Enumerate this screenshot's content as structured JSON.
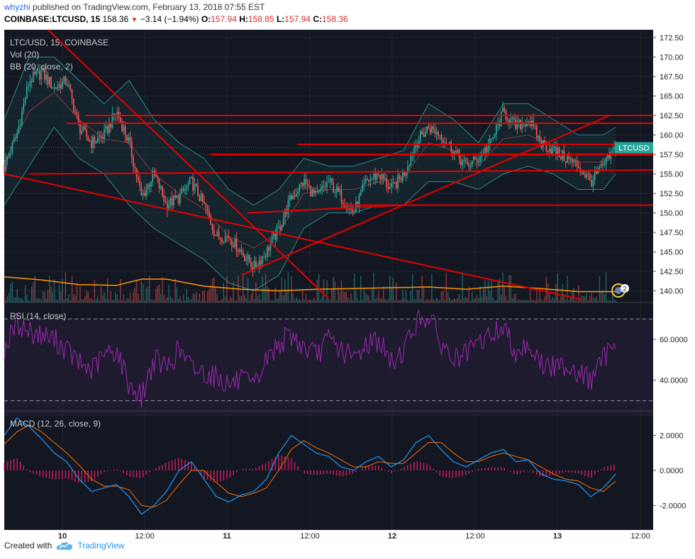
{
  "header": {
    "user": "whyzhi",
    "published_text": "published on TradingView.com, February 13, 2018 07:55 EST",
    "symbol": "COINBASE:LTCUSD, 15",
    "last": "158.36",
    "change": "−3.14 (−1.94%)",
    "o_label": "O:",
    "o_value": "157.94",
    "h_label": "H:",
    "h_value": "158.85",
    "l_label": "L:",
    "l_value": "157.94",
    "c_label": "C:",
    "c_value": "158.36"
  },
  "footer": {
    "created_with": "Created with",
    "brand": "TradingView"
  },
  "colors": {
    "bg": "#131722",
    "up": "#26a69a",
    "down": "#ef5350",
    "trend": "#e60000",
    "bb": "#2a8c8c",
    "vol_ma": "#ff9800",
    "rsi": "#9c27b0",
    "macd": "#2196f3",
    "signal": "#ff6d00",
    "hist": "#e91e63"
  },
  "chart_data": [
    {
      "type": "candlestick",
      "legend": [
        "LTC/USD, 15, COINBASE",
        "Vol (20)",
        "BB (20, close, 2)"
      ],
      "price_label": "LTCUSD",
      "last_price": 158.36,
      "x_ticks": [
        "10",
        "12:00",
        "11",
        "12:00",
        "12",
        "12:00",
        "13",
        "12:00"
      ],
      "y_ticks": [
        "172.50",
        "170.00",
        "167.50",
        "165.00",
        "162.50",
        "160.00",
        "157.50",
        "155.00",
        "152.50",
        "150.00",
        "147.50",
        "145.00",
        "142.50",
        "140.00"
      ],
      "ylim": [
        138.5,
        173.5
      ],
      "x_range_hours": [
        0,
        104
      ],
      "close_path": [
        [
          0,
          156
        ],
        [
          2,
          160
        ],
        [
          4,
          167
        ],
        [
          6,
          168
        ],
        [
          8,
          166
        ],
        [
          10,
          167
        ],
        [
          12,
          161
        ],
        [
          14,
          159
        ],
        [
          16,
          160
        ],
        [
          18,
          163
        ],
        [
          20,
          159
        ],
        [
          22,
          152
        ],
        [
          24,
          155
        ],
        [
          26,
          151
        ],
        [
          28,
          152
        ],
        [
          30,
          154
        ],
        [
          32,
          151
        ],
        [
          34,
          147
        ],
        [
          36,
          147
        ],
        [
          38,
          145
        ],
        [
          40,
          143
        ],
        [
          42,
          145
        ],
        [
          44,
          148
        ],
        [
          46,
          152
        ],
        [
          48,
          154
        ],
        [
          50,
          152
        ],
        [
          52,
          154
        ],
        [
          54,
          152
        ],
        [
          56,
          150
        ],
        [
          58,
          154
        ],
        [
          60,
          155
        ],
        [
          62,
          153
        ],
        [
          64,
          155
        ],
        [
          66,
          159
        ],
        [
          68,
          161
        ],
        [
          70,
          160
        ],
        [
          72,
          158
        ],
        [
          74,
          156
        ],
        [
          76,
          157
        ],
        [
          78,
          159
        ],
        [
          80,
          163
        ],
        [
          82,
          161
        ],
        [
          84,
          162
        ],
        [
          86,
          159
        ],
        [
          88,
          158
        ],
        [
          90,
          157
        ],
        [
          92,
          156
        ],
        [
          94,
          154
        ],
        [
          96,
          156
        ],
        [
          98,
          158.36
        ]
      ],
      "bb_upper": [
        [
          0,
          162
        ],
        [
          4,
          170
        ],
        [
          8,
          170
        ],
        [
          12,
          167
        ],
        [
          16,
          164
        ],
        [
          20,
          167
        ],
        [
          24,
          162
        ],
        [
          28,
          159
        ],
        [
          32,
          157
        ],
        [
          36,
          153
        ],
        [
          40,
          151
        ],
        [
          44,
          153
        ],
        [
          48,
          157
        ],
        [
          52,
          156
        ],
        [
          56,
          156
        ],
        [
          60,
          157
        ],
        [
          64,
          158
        ],
        [
          68,
          164
        ],
        [
          72,
          162
        ],
        [
          76,
          159
        ],
        [
          80,
          164
        ],
        [
          84,
          164
        ],
        [
          88,
          162
        ],
        [
          92,
          160
        ],
        [
          96,
          160
        ],
        [
          98,
          161
        ]
      ],
      "bb_lower": [
        [
          0,
          151
        ],
        [
          4,
          156
        ],
        [
          8,
          161
        ],
        [
          12,
          157
        ],
        [
          16,
          155
        ],
        [
          20,
          151
        ],
        [
          24,
          148
        ],
        [
          28,
          146
        ],
        [
          32,
          144
        ],
        [
          36,
          141
        ],
        [
          40,
          140
        ],
        [
          44,
          142
        ],
        [
          48,
          148
        ],
        [
          52,
          150
        ],
        [
          56,
          150
        ],
        [
          60,
          151
        ],
        [
          64,
          151
        ],
        [
          68,
          154
        ],
        [
          72,
          154
        ],
        [
          76,
          153
        ],
        [
          80,
          155
        ],
        [
          84,
          156
        ],
        [
          88,
          155
        ],
        [
          92,
          153
        ],
        [
          96,
          153
        ],
        [
          98,
          155
        ]
      ],
      "volume_ma": [
        [
          0,
          141.8
        ],
        [
          6,
          141.4
        ],
        [
          12,
          140.8
        ],
        [
          18,
          140.7
        ],
        [
          22,
          141.5
        ],
        [
          26,
          141.5
        ],
        [
          32,
          140.6
        ],
        [
          38,
          140.2
        ],
        [
          44,
          140
        ],
        [
          50,
          140.2
        ],
        [
          56,
          140.3
        ],
        [
          62,
          140.4
        ],
        [
          68,
          140.5
        ],
        [
          74,
          140.2
        ],
        [
          80,
          140.6
        ],
        [
          86,
          140.3
        ],
        [
          92,
          139.9
        ],
        [
          98,
          139.9
        ]
      ],
      "trend_lines": [
        [
          [
            7,
            173.5
          ],
          [
            52,
            139
          ]
        ],
        [
          [
            0,
            155
          ],
          [
            92,
            139
          ]
        ],
        [
          [
            38,
            142
          ],
          [
            97,
            162.5
          ]
        ],
        [
          [
            54,
            151
          ],
          [
            104,
            151
          ]
        ],
        [
          [
            39,
            150
          ],
          [
            64,
            151
          ]
        ],
        [
          [
            4,
            155
          ],
          [
            104,
            155.5
          ]
        ],
        [
          [
            33,
            157.5
          ],
          [
            104,
            157.5
          ]
        ],
        [
          [
            47,
            158.8
          ],
          [
            104,
            158.8
          ]
        ],
        [
          [
            10,
            161.5
          ],
          [
            104,
            161.5
          ]
        ],
        [
          [
            13,
            162.5
          ],
          [
            104,
            162.5
          ]
        ]
      ]
    },
    {
      "type": "line",
      "legend": "RSI (14, close)",
      "y_ticks": [
        "60.0000",
        "40.0000"
      ],
      "ylim": [
        25,
        78
      ],
      "bands": [
        30,
        70
      ],
      "values": [
        [
          0,
          55
        ],
        [
          2,
          68
        ],
        [
          4,
          64
        ],
        [
          6,
          62
        ],
        [
          8,
          60
        ],
        [
          10,
          55
        ],
        [
          12,
          48
        ],
        [
          14,
          45
        ],
        [
          16,
          52
        ],
        [
          18,
          55
        ],
        [
          20,
          38
        ],
        [
          22,
          32
        ],
        [
          24,
          50
        ],
        [
          26,
          46
        ],
        [
          28,
          55
        ],
        [
          30,
          46
        ],
        [
          32,
          44
        ],
        [
          34,
          42
        ],
        [
          36,
          38
        ],
        [
          38,
          40
        ],
        [
          40,
          36
        ],
        [
          42,
          50
        ],
        [
          44,
          58
        ],
        [
          46,
          62
        ],
        [
          48,
          56
        ],
        [
          50,
          52
        ],
        [
          52,
          60
        ],
        [
          54,
          55
        ],
        [
          56,
          50
        ],
        [
          58,
          58
        ],
        [
          60,
          60
        ],
        [
          62,
          48
        ],
        [
          64,
          55
        ],
        [
          66,
          68
        ],
        [
          68,
          72
        ],
        [
          70,
          58
        ],
        [
          72,
          50
        ],
        [
          74,
          52
        ],
        [
          76,
          58
        ],
        [
          78,
          62
        ],
        [
          80,
          66
        ],
        [
          82,
          54
        ],
        [
          84,
          58
        ],
        [
          86,
          48
        ],
        [
          88,
          46
        ],
        [
          90,
          48
        ],
        [
          92,
          44
        ],
        [
          94,
          40
        ],
        [
          96,
          50
        ],
        [
          98,
          61
        ]
      ]
    },
    {
      "type": "line",
      "legend": "MACD (12, 26, close, 9)",
      "y_ticks": [
        "2.0000",
        "0.0000",
        "-2.0000"
      ],
      "ylim": [
        -3.4,
        3.4
      ],
      "macd": [
        [
          0,
          2
        ],
        [
          2,
          3
        ],
        [
          4,
          2.5
        ],
        [
          6,
          1.8
        ],
        [
          8,
          1
        ],
        [
          10,
          0.5
        ],
        [
          12,
          -0.5
        ],
        [
          14,
          -1.2
        ],
        [
          16,
          -1
        ],
        [
          18,
          -0.8
        ],
        [
          20,
          -1.5
        ],
        [
          22,
          -2.5
        ],
        [
          24,
          -2
        ],
        [
          26,
          -1.2
        ],
        [
          28,
          0
        ],
        [
          30,
          0.5
        ],
        [
          32,
          -0.5
        ],
        [
          34,
          -1.5
        ],
        [
          36,
          -1.8
        ],
        [
          38,
          -1.4
        ],
        [
          40,
          -1.2
        ],
        [
          42,
          -0.5
        ],
        [
          44,
          1
        ],
        [
          46,
          2
        ],
        [
          48,
          1.5
        ],
        [
          50,
          1
        ],
        [
          52,
          0.8
        ],
        [
          54,
          0.2
        ],
        [
          56,
          0
        ],
        [
          58,
          0.5
        ],
        [
          60,
          0.8
        ],
        [
          62,
          0.2
        ],
        [
          64,
          0.6
        ],
        [
          66,
          1.6
        ],
        [
          68,
          2
        ],
        [
          70,
          1.2
        ],
        [
          72,
          0.5
        ],
        [
          74,
          0.2
        ],
        [
          76,
          0.6
        ],
        [
          78,
          1
        ],
        [
          80,
          1.2
        ],
        [
          82,
          0.5
        ],
        [
          84,
          0.6
        ],
        [
          86,
          -0.2
        ],
        [
          88,
          -0.5
        ],
        [
          90,
          -0.6
        ],
        [
          92,
          -0.8
        ],
        [
          94,
          -1.5
        ],
        [
          96,
          -1
        ],
        [
          98,
          -0.2
        ]
      ],
      "signal": [
        [
          0,
          1.5
        ],
        [
          2,
          2.2
        ],
        [
          4,
          2.6
        ],
        [
          6,
          2.2
        ],
        [
          8,
          1.6
        ],
        [
          10,
          1
        ],
        [
          12,
          0.3
        ],
        [
          14,
          -0.5
        ],
        [
          16,
          -0.9
        ],
        [
          18,
          -0.9
        ],
        [
          20,
          -1.1
        ],
        [
          22,
          -2
        ],
        [
          24,
          -2.1
        ],
        [
          26,
          -1.7
        ],
        [
          28,
          -0.8
        ],
        [
          30,
          0
        ],
        [
          32,
          0
        ],
        [
          34,
          -0.7
        ],
        [
          36,
          -1.3
        ],
        [
          38,
          -1.5
        ],
        [
          40,
          -1.3
        ],
        [
          42,
          -1
        ],
        [
          44,
          0
        ],
        [
          46,
          1.2
        ],
        [
          48,
          1.7
        ],
        [
          50,
          1.3
        ],
        [
          52,
          1
        ],
        [
          54,
          0.6
        ],
        [
          56,
          0.2
        ],
        [
          58,
          0.2
        ],
        [
          60,
          0.5
        ],
        [
          62,
          0.4
        ],
        [
          64,
          0.4
        ],
        [
          66,
          1
        ],
        [
          68,
          1.6
        ],
        [
          70,
          1.6
        ],
        [
          72,
          1
        ],
        [
          74,
          0.5
        ],
        [
          76,
          0.5
        ],
        [
          78,
          0.8
        ],
        [
          80,
          1
        ],
        [
          82,
          0.8
        ],
        [
          84,
          0.6
        ],
        [
          86,
          0.2
        ],
        [
          88,
          -0.2
        ],
        [
          90,
          -0.5
        ],
        [
          92,
          -0.6
        ],
        [
          94,
          -1
        ],
        [
          96,
          -1.2
        ],
        [
          98,
          -0.6
        ]
      ]
    }
  ]
}
